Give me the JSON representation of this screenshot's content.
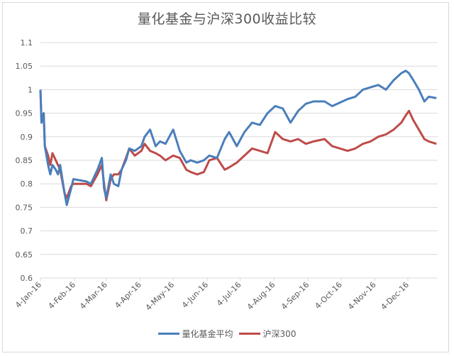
{
  "chart_data": {
    "type": "line",
    "title": "量化基金与沪深300收益比较",
    "xlabel": "",
    "ylabel": "",
    "ylim": [
      0.6,
      1.1
    ],
    "yticks": [
      "0.6",
      "0.65",
      "0.7",
      "0.75",
      "0.8",
      "0.85",
      "0.9",
      "0.95",
      "1",
      "1.05",
      "1.1"
    ],
    "xticks": [
      "4-Jan-16",
      "4-Feb-16",
      "4-Mar-16",
      "4-Apr-16",
      "4-May-16",
      "4-Jun-16",
      "4-Jul-16",
      "4-Aug-16",
      "4-Sep-16",
      "4-Oct-16",
      "4-Nov-16",
      "4-Dec-16"
    ],
    "grid": true,
    "legend_position": "bottom",
    "x": [
      "2016-01-04",
      "2016-01-05",
      "2016-01-07",
      "2016-01-08",
      "2016-01-11",
      "2016-01-13",
      "2016-01-15",
      "2016-01-18",
      "2016-01-20",
      "2016-01-22",
      "2016-01-26",
      "2016-01-28",
      "2016-02-01",
      "2016-02-03",
      "2016-02-15",
      "2016-02-19",
      "2016-02-25",
      "2016-02-29",
      "2016-03-02",
      "2016-03-04",
      "2016-03-08",
      "2016-03-11",
      "2016-03-15",
      "2016-03-18",
      "2016-03-22",
      "2016-03-25",
      "2016-03-30",
      "2016-04-05",
      "2016-04-08",
      "2016-04-13",
      "2016-04-18",
      "2016-04-22",
      "2016-04-27",
      "2016-05-04",
      "2016-05-10",
      "2016-05-16",
      "2016-05-20",
      "2016-05-26",
      "2016-06-01",
      "2016-06-06",
      "2016-06-13",
      "2016-06-20",
      "2016-06-24",
      "2016-07-01",
      "2016-07-08",
      "2016-07-15",
      "2016-07-22",
      "2016-07-29",
      "2016-08-05",
      "2016-08-12",
      "2016-08-19",
      "2016-08-26",
      "2016-09-02",
      "2016-09-09",
      "2016-09-19",
      "2016-09-26",
      "2016-10-10",
      "2016-10-17",
      "2016-10-24",
      "2016-10-31",
      "2016-11-07",
      "2016-11-14",
      "2016-11-21",
      "2016-11-28",
      "2016-12-02",
      "2016-12-05",
      "2016-12-09",
      "2016-12-14",
      "2016-12-19",
      "2016-12-23",
      "2016-12-30"
    ],
    "series": [
      {
        "name": "量化基金平均",
        "color": "#4A7EBB",
        "values": [
          1.0,
          0.93,
          0.95,
          0.88,
          0.84,
          0.82,
          0.84,
          0.83,
          0.82,
          0.84,
          0.78,
          0.755,
          0.79,
          0.81,
          0.805,
          0.8,
          0.83,
          0.855,
          0.79,
          0.77,
          0.82,
          0.8,
          0.795,
          0.83,
          0.85,
          0.875,
          0.87,
          0.88,
          0.9,
          0.915,
          0.88,
          0.89,
          0.885,
          0.915,
          0.87,
          0.845,
          0.85,
          0.845,
          0.85,
          0.86,
          0.855,
          0.895,
          0.91,
          0.88,
          0.91,
          0.93,
          0.925,
          0.95,
          0.965,
          0.96,
          0.93,
          0.955,
          0.97,
          0.975,
          0.975,
          0.965,
          0.98,
          0.985,
          1.0,
          1.005,
          1.01,
          1.0,
          1.02,
          1.035,
          1.04,
          1.035,
          1.02,
          1.0,
          0.975,
          0.985,
          0.982
        ]
      },
      {
        "name": "沪深300",
        "color": "#BE4B48",
        "values": [
          1.0,
          0.93,
          0.95,
          0.88,
          0.86,
          0.84,
          0.865,
          0.85,
          0.84,
          0.83,
          0.78,
          0.77,
          0.795,
          0.8,
          0.8,
          0.795,
          0.82,
          0.84,
          0.8,
          0.765,
          0.81,
          0.82,
          0.82,
          0.83,
          0.855,
          0.875,
          0.86,
          0.87,
          0.885,
          0.87,
          0.865,
          0.86,
          0.85,
          0.86,
          0.855,
          0.83,
          0.825,
          0.82,
          0.825,
          0.85,
          0.855,
          0.83,
          0.835,
          0.845,
          0.86,
          0.875,
          0.87,
          0.865,
          0.91,
          0.895,
          0.89,
          0.895,
          0.885,
          0.89,
          0.895,
          0.88,
          0.87,
          0.875,
          0.885,
          0.89,
          0.9,
          0.905,
          0.915,
          0.93,
          0.945,
          0.955,
          0.935,
          0.915,
          0.895,
          0.89,
          0.885
        ]
      }
    ]
  },
  "legend": {
    "items": [
      {
        "label": "量化基金平均",
        "color": "#4A7EBB"
      },
      {
        "label": "沪深300",
        "color": "#BE4B48"
      }
    ]
  }
}
